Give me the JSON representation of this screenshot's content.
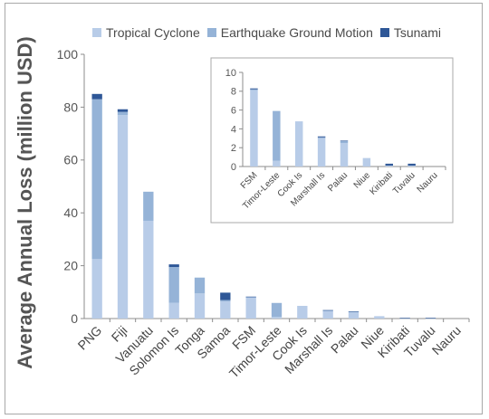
{
  "chart_data": [
    {
      "type": "bar",
      "stacked": true,
      "categories": [
        "PNG",
        "Fiji",
        "Vanuatu",
        "Solomon Is",
        "Tonga",
        "Samoa",
        "FSM",
        "Timor-Leste",
        "Cook Is",
        "Marshall Is",
        "Palau",
        "Niue",
        "Kiribati",
        "Tuvalu",
        "Nauru"
      ],
      "series": [
        {
          "name": "Tropical Cyclone",
          "color": "#b8cce8",
          "values": [
            22.5,
            77,
            37,
            6,
            9.5,
            6.5,
            8.1,
            0.6,
            4.8,
            3.0,
            2.5,
            0.9,
            0.1,
            0.1,
            0
          ]
        },
        {
          "name": "Earthquake Ground Motion",
          "color": "#95b3d7",
          "values": [
            60.5,
            1.2,
            11,
            13.5,
            6.0,
            0.5,
            0.1,
            5.3,
            0,
            0.1,
            0.2,
            0,
            0,
            0,
            0
          ]
        },
        {
          "name": "Tsunami",
          "color": "#2e5797",
          "values": [
            2.0,
            1.0,
            0,
            1.0,
            0,
            2.8,
            0.1,
            0,
            0,
            0.1,
            0.05,
            0,
            0.2,
            0.2,
            0
          ]
        }
      ],
      "ylabel": "Average Annual Loss (million USD)",
      "ylim": [
        0,
        100
      ],
      "yticks": [
        0,
        20,
        40,
        60,
        80,
        100
      ],
      "grid": false,
      "legend": "top"
    },
    {
      "type": "bar",
      "stacked": true,
      "inset": true,
      "categories": [
        "FSM",
        "Timor-Leste",
        "Cook Is",
        "Marshall Is",
        "Palau",
        "Niue",
        "Kiribati",
        "Tuvalu",
        "Nauru"
      ],
      "series": [
        {
          "name": "Tropical Cyclone",
          "color": "#b8cce8",
          "values": [
            8.1,
            0.6,
            4.8,
            3.0,
            2.5,
            0.9,
            0.1,
            0.1,
            0
          ]
        },
        {
          "name": "Earthquake Ground Motion",
          "color": "#95b3d7",
          "values": [
            0.1,
            5.3,
            0,
            0.1,
            0.2,
            0,
            0,
            0,
            0
          ]
        },
        {
          "name": "Tsunami",
          "color": "#2e5797",
          "values": [
            0.1,
            0,
            0,
            0.1,
            0.05,
            0,
            0.2,
            0.2,
            0
          ]
        }
      ],
      "ylim": [
        0,
        10
      ],
      "yticks": [
        0,
        2,
        4,
        6,
        8,
        10
      ],
      "grid": false
    }
  ]
}
